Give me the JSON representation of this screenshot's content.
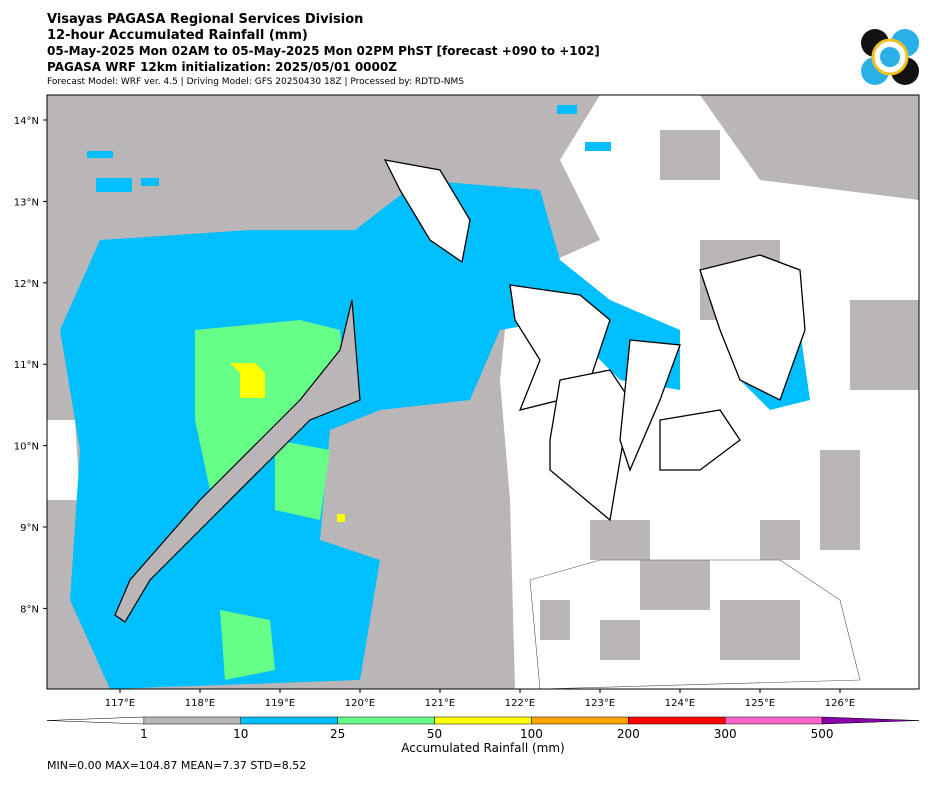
{
  "header": {
    "title": "Visayas PAGASA Regional Services Division",
    "subtitle": "12-hour Accumulated Rainfall (mm)",
    "period": "05-May-2025 Mon 02AM to 05-May-2025 Mon 02PM PhST [forecast +090 to +102]",
    "init": "PAGASA WRF 12km initialization: 2025/05/01 0000Z",
    "model": "Forecast Model: WRF ver. 4.5 | Driving Model: GFS 20250430 18Z | Processed by: RDTD-NMS"
  },
  "map": {
    "lon_ticks": [
      "117°E",
      "118°E",
      "119°E",
      "120°E",
      "121°E",
      "122°E",
      "123°E",
      "124°E",
      "125°E",
      "126°E"
    ],
    "lat_ticks": [
      "14°N",
      "13°N",
      "12°N",
      "11°N",
      "10°N",
      "9°N",
      "8°N"
    ]
  },
  "colorbar": {
    "label": "Accumulated Rainfall (mm)",
    "ticks": [
      1,
      10,
      25,
      50,
      100,
      200,
      300,
      500
    ],
    "colors": [
      "#ffffff",
      "#bab6b7",
      "#00bfff",
      "#66ff88",
      "#ffff00",
      "#ffa500",
      "#ff0000",
      "#ff66cc",
      "#8800aa"
    ]
  },
  "stats": "MIN=0.00   MAX=104.87   MEAN=7.37   STD=8.52"
}
